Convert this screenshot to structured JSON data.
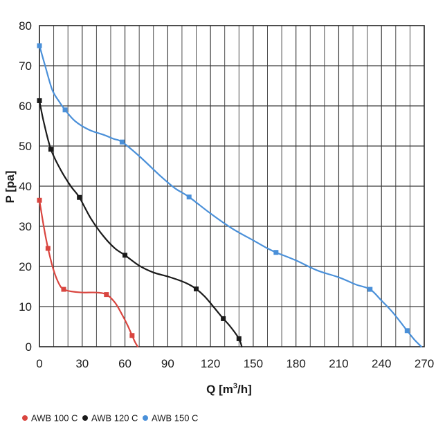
{
  "chart_data": {
    "type": "line",
    "title": "",
    "xlabel": "Q [m",
    "xlabel_sup": "3",
    "xlabel_tail": "/h]",
    "ylabel": "P [pa]",
    "xlim": [
      0,
      270
    ],
    "ylim": [
      0,
      80
    ],
    "x_ticks": [
      0,
      30,
      60,
      90,
      120,
      150,
      180,
      210,
      240,
      270
    ],
    "x_tick_labels": [
      "0",
      "30",
      "60",
      "90",
      "120",
      "150",
      "180",
      "210",
      "240",
      "270"
    ],
    "y_ticks": [
      0,
      10,
      20,
      30,
      40,
      50,
      60,
      70,
      80
    ],
    "y_tick_labels": [
      "0",
      "10",
      "20",
      "30",
      "40",
      "50",
      "60",
      "70",
      "80"
    ],
    "grid": true,
    "legend_position": "bottom-left",
    "series": [
      {
        "name": "AWB 100 C",
        "color": "#d9453f",
        "markers": [
          [
            0,
            36.5
          ],
          [
            6,
            24.5
          ],
          [
            17,
            14.3
          ],
          [
            47,
            13
          ],
          [
            65,
            2.8
          ]
        ],
        "points": [
          [
            0,
            36.5
          ],
          [
            3,
            30
          ],
          [
            6,
            24.5
          ],
          [
            10,
            19
          ],
          [
            14,
            15.5
          ],
          [
            17,
            14.3
          ],
          [
            22,
            13.8
          ],
          [
            30,
            13.5
          ],
          [
            40,
            13.5
          ],
          [
            47,
            13
          ],
          [
            53,
            11
          ],
          [
            58,
            8
          ],
          [
            62,
            5.2
          ],
          [
            65,
            2.8
          ],
          [
            67,
            1.2
          ],
          [
            69,
            0
          ]
        ]
      },
      {
        "name": "AWB 120 C",
        "color": "#1a1a1a",
        "markers": [
          [
            0,
            61.3
          ],
          [
            8,
            49.2
          ],
          [
            28,
            37.2
          ],
          [
            60,
            22.8
          ],
          [
            110,
            14.4
          ],
          [
            129,
            7
          ],
          [
            140,
            2
          ]
        ],
        "points": [
          [
            0,
            61.3
          ],
          [
            3,
            56
          ],
          [
            8,
            49.2
          ],
          [
            15,
            44
          ],
          [
            22,
            40
          ],
          [
            28,
            37.2
          ],
          [
            36,
            32
          ],
          [
            45,
            27.5
          ],
          [
            53,
            24.5
          ],
          [
            60,
            22.8
          ],
          [
            70,
            20.2
          ],
          [
            80,
            18.5
          ],
          [
            90,
            17.5
          ],
          [
            100,
            16.3
          ],
          [
            105,
            15.5
          ],
          [
            110,
            14.4
          ],
          [
            116,
            12.5
          ],
          [
            122,
            10
          ],
          [
            129,
            7
          ],
          [
            134,
            5
          ],
          [
            140,
            2
          ],
          [
            142,
            0
          ]
        ]
      },
      {
        "name": "AWB 150 C",
        "color": "#4a90d9",
        "markers": [
          [
            0,
            75
          ],
          [
            18,
            59
          ],
          [
            58,
            51
          ],
          [
            105,
            37.3
          ],
          [
            166,
            23.5
          ],
          [
            232,
            14.3
          ],
          [
            258,
            4
          ]
        ],
        "points": [
          [
            0,
            75
          ],
          [
            4,
            70
          ],
          [
            9,
            64
          ],
          [
            14,
            61
          ],
          [
            18,
            59
          ],
          [
            25,
            56.2
          ],
          [
            35,
            54
          ],
          [
            45,
            52.8
          ],
          [
            52,
            51.8
          ],
          [
            58,
            51
          ],
          [
            70,
            47.5
          ],
          [
            85,
            42.5
          ],
          [
            95,
            39.5
          ],
          [
            105,
            37.3
          ],
          [
            120,
            33.2
          ],
          [
            135,
            29.5
          ],
          [
            150,
            26.5
          ],
          [
            160,
            24.5
          ],
          [
            166,
            23.5
          ],
          [
            180,
            21.5
          ],
          [
            195,
            19
          ],
          [
            210,
            17.3
          ],
          [
            222,
            15.5
          ],
          [
            232,
            14.3
          ],
          [
            240,
            11.5
          ],
          [
            248,
            8.5
          ],
          [
            258,
            4
          ],
          [
            263,
            1.8
          ],
          [
            268,
            0
          ]
        ]
      }
    ]
  }
}
